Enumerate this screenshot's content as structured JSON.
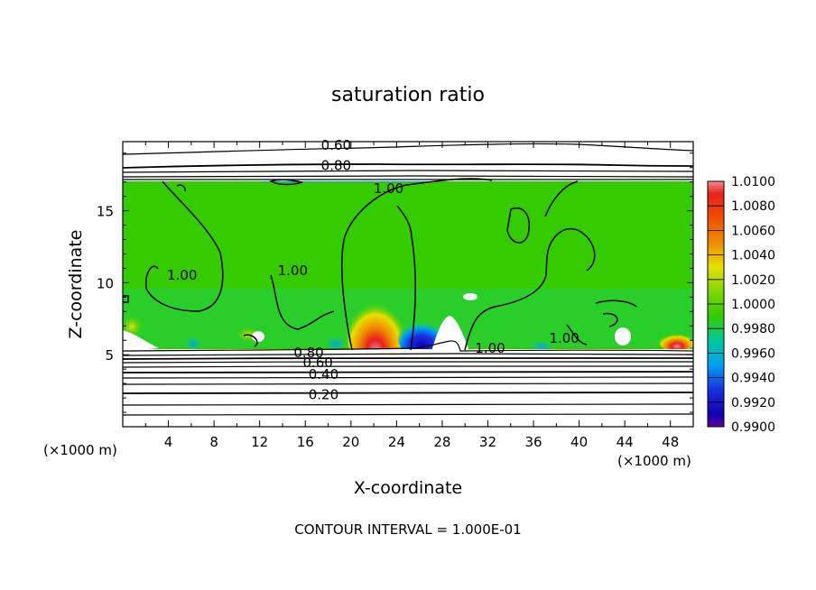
{
  "chart_data": {
    "type": "heatmap",
    "title": "saturation ratio",
    "xlabel": "X-coordinate",
    "ylabel": "Z-coordinate",
    "x_unit": "(×1000 m)",
    "z_unit": "(×1000 m)",
    "xlim": [
      0,
      50
    ],
    "ylim": [
      0,
      19.8
    ],
    "x_ticks": [
      4,
      8,
      12,
      16,
      20,
      24,
      28,
      32,
      36,
      40,
      44,
      48
    ],
    "y_ticks": [
      5,
      10,
      15
    ],
    "footer": "CONTOUR INTERVAL = 1.000E-01",
    "colorbar": {
      "min": 0.99,
      "max": 1.01,
      "labels": [
        "1.0100",
        "1.0080",
        "1.0060",
        "1.0040",
        "1.0020",
        "1.0000",
        "0.9980",
        "0.9960",
        "0.9940",
        "0.9920",
        "0.9900"
      ],
      "colors": [
        "#f09090",
        "#e82020",
        "#f05000",
        "#f08c00",
        "#e8e000",
        "#a8e000",
        "#34cc00",
        "#00c8a0",
        "#00a0f0",
        "#1830e0",
        "#1000b0",
        "#6000a0"
      ]
    },
    "contour_labels": [
      {
        "text": "0.60",
        "x": 18.7,
        "z": 19.6
      },
      {
        "text": "0.80",
        "x": 18.7,
        "z": 18.2
      },
      {
        "text": "1.00",
        "x": 23.3,
        "z": 16.6
      },
      {
        "text": "1.00",
        "x": 14.9,
        "z": 10.9
      },
      {
        "text": "1.00",
        "x": 5.2,
        "z": 10.6
      },
      {
        "text": "1.00",
        "x": 32.2,
        "z": 5.5
      },
      {
        "text": "1.00",
        "x": 38.7,
        "z": 6.2
      },
      {
        "text": "0.80",
        "x": 16.3,
        "z": 5.2
      },
      {
        "text": "0.60",
        "x": 17.1,
        "z": 4.5
      },
      {
        "text": "0.40",
        "x": 17.6,
        "z": 3.7
      },
      {
        "text": "0.20",
        "x": 17.6,
        "z": 2.3
      }
    ]
  }
}
